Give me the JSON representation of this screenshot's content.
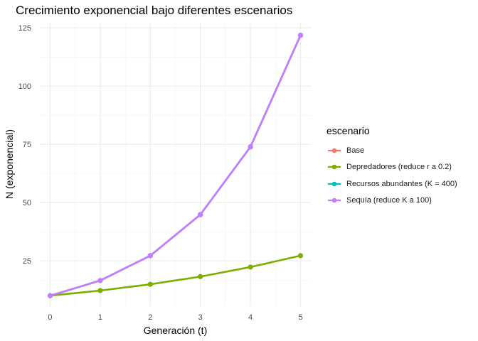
{
  "chart_data": {
    "type": "line",
    "title": "Crecimiento exponencial bajo diferentes escenarios",
    "xlabel": "Generación (t)",
    "ylabel": "N (exponencial)",
    "x": [
      0,
      1,
      2,
      3,
      4,
      5
    ],
    "x_ticks": [
      "0",
      "1",
      "2",
      "3",
      "4",
      "5"
    ],
    "y_ticks": [
      "25",
      "50",
      "75",
      "100",
      "125"
    ],
    "y_tick_values": [
      25,
      50,
      75,
      100,
      125
    ],
    "xlim": [
      -0.22,
      5.22
    ],
    "ylim": [
      5.5,
      127.5
    ],
    "grid": true,
    "legend_title": "escenario",
    "legend_position": "right",
    "series": [
      {
        "name": "Base",
        "color": "#F8766D",
        "values": [
          10,
          16.5,
          27.2,
          44.8,
          73.9,
          121.8
        ]
      },
      {
        "name": "Depredadores (reduce r a 0.2)",
        "color": "#7CAE00",
        "values": [
          10,
          12.2,
          14.9,
          18.2,
          22.3,
          27.2
        ]
      },
      {
        "name": "Recursos abundantes (K = 400)",
        "color": "#00BFC4",
        "values": [
          10,
          16.5,
          27.2,
          44.8,
          73.9,
          121.8
        ]
      },
      {
        "name": "Sequía (reduce K a 100)",
        "color": "#C77CFF",
        "values": [
          10,
          16.5,
          27.2,
          44.8,
          73.9,
          121.8
        ]
      }
    ]
  }
}
